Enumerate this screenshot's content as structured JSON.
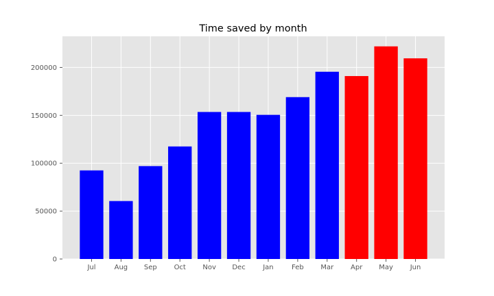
{
  "chart_data": {
    "type": "bar",
    "title": "Time saved by month",
    "xlabel": "",
    "ylabel": "",
    "categories": [
      "Jul",
      "Aug",
      "Sep",
      "Oct",
      "Nov",
      "Dec",
      "Jan",
      "Feb",
      "Mar",
      "Apr",
      "May",
      "Jun"
    ],
    "values": [
      92500,
      60500,
      97000,
      117500,
      153500,
      153500,
      150500,
      169000,
      195500,
      191000,
      222000,
      209500
    ],
    "colors": [
      "#0000ff",
      "#0000ff",
      "#0000ff",
      "#0000ff",
      "#0000ff",
      "#0000ff",
      "#0000ff",
      "#0000ff",
      "#0000ff",
      "#ff0000",
      "#ff0000",
      "#ff0000"
    ],
    "ylim": [
      0,
      232500
    ],
    "yticks": [
      0,
      50000,
      100000,
      150000,
      200000
    ],
    "ytick_labels": [
      "0",
      "50000",
      "100000",
      "150000",
      "200000"
    ],
    "grid": true,
    "background_color": "#e5e5e5",
    "grid_color": "#ffffff",
    "legend": "none"
  }
}
